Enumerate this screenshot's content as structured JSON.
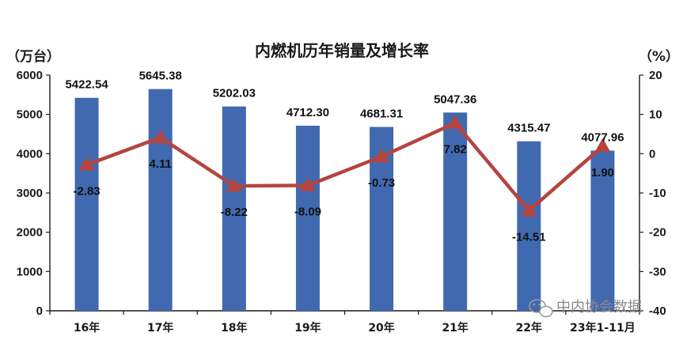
{
  "chart_data": {
    "type": "bar",
    "title": "内燃机历年销量及增长率",
    "categories": [
      "16年",
      "17年",
      "18年",
      "19年",
      "20年",
      "21年",
      "22年",
      "23年1-11月"
    ],
    "series": [
      {
        "name": "",
        "type": "bar",
        "axis": "left",
        "values": [
          5422.54,
          5645.38,
          5202.03,
          4712.3,
          4681.31,
          5047.36,
          4315.47,
          4077.96
        ],
        "labels": [
          "5422.54",
          "5645.38",
          "5202.03",
          "4712.30",
          "4681.31",
          "5047.36",
          "4315.47",
          "4077.96"
        ],
        "color": "#4169b0"
      },
      {
        "name": "",
        "type": "line",
        "axis": "right",
        "values": [
          -2.83,
          4.11,
          -8.22,
          -8.09,
          -0.73,
          7.82,
          -14.51,
          1.9
        ],
        "labels": [
          "-2.83",
          "4.11",
          "-8.22",
          "-8.09",
          "-0.73",
          "7.82",
          "-14.51",
          "1.90"
        ],
        "color": "#b5443f",
        "marker": "triangle"
      }
    ],
    "ylabel": "（万台）",
    "y2label": "（%）",
    "ylim": [
      0,
      6000
    ],
    "y2lim": [
      -40,
      20
    ],
    "yticks": [
      "0",
      "1000",
      "2000",
      "3000",
      "4000",
      "5000",
      "6000"
    ],
    "y2ticks": [
      "-40",
      "-30",
      "-20",
      "-10",
      "0",
      "10",
      "20"
    ],
    "grid": false
  },
  "watermark": {
    "text": "中内协会数据",
    "icon": "wechat-icon"
  }
}
